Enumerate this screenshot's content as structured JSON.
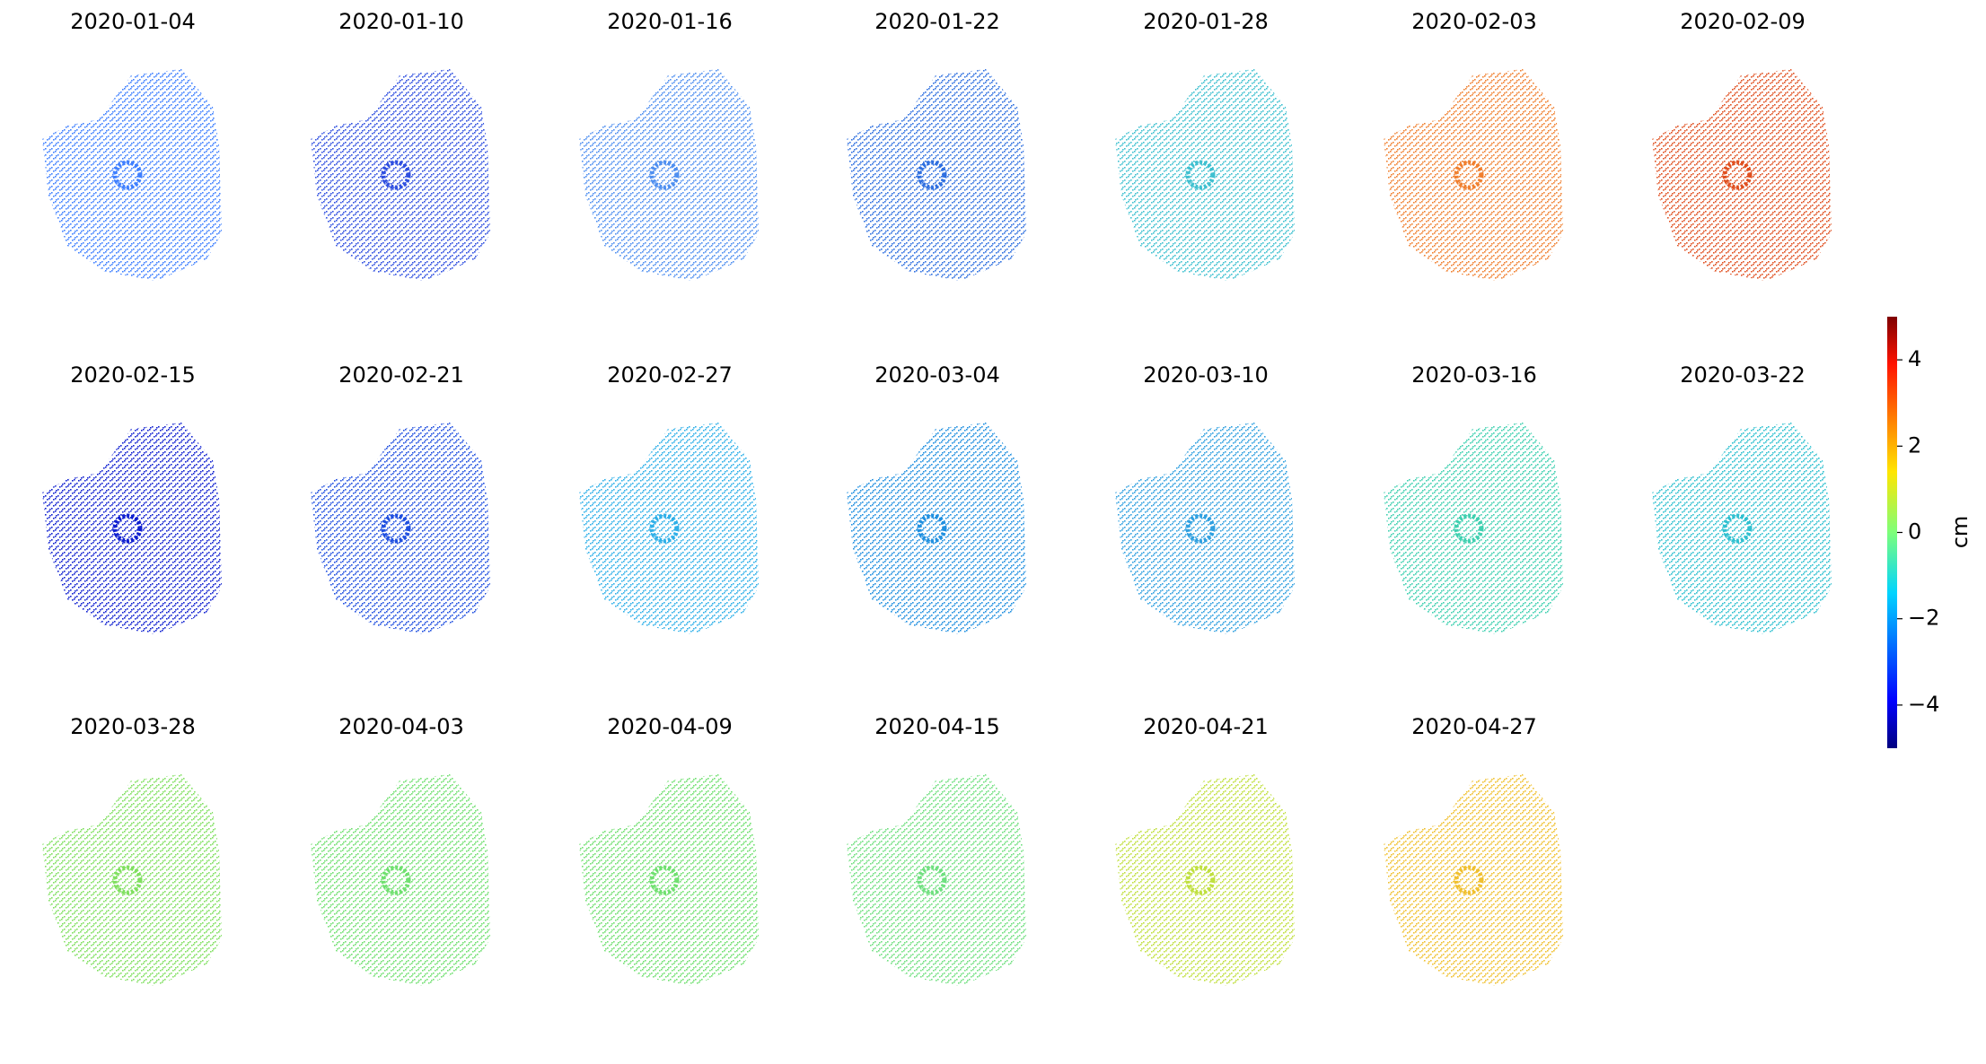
{
  "chart_data": {
    "type": "map-grid",
    "panels": [
      {
        "title": "2020-01-04",
        "color": "#4080ff"
      },
      {
        "title": "2020-01-10",
        "color": "#3050e0"
      },
      {
        "title": "2020-01-16",
        "color": "#5090f0"
      },
      {
        "title": "2020-01-22",
        "color": "#3070e0"
      },
      {
        "title": "2020-01-28",
        "color": "#40c0d0"
      },
      {
        "title": "2020-02-03",
        "color": "#f08030"
      },
      {
        "title": "2020-02-09",
        "color": "#e05020"
      },
      {
        "title": "2020-02-15",
        "color": "#1020d0"
      },
      {
        "title": "2020-02-21",
        "color": "#2050e0"
      },
      {
        "title": "2020-02-27",
        "color": "#30b0e8"
      },
      {
        "title": "2020-03-04",
        "color": "#2090e0"
      },
      {
        "title": "2020-03-10",
        "color": "#30a0e0"
      },
      {
        "title": "2020-03-16",
        "color": "#40d0b0"
      },
      {
        "title": "2020-03-22",
        "color": "#30c0d0"
      },
      {
        "title": "2020-03-28",
        "color": "#80e060"
      },
      {
        "title": "2020-04-03",
        "color": "#70e070"
      },
      {
        "title": "2020-04-09",
        "color": "#70e070"
      },
      {
        "title": "2020-04-15",
        "color": "#70e080"
      },
      {
        "title": "2020-04-21",
        "color": "#c0e040"
      },
      {
        "title": "2020-04-27",
        "color": "#f0c030"
      }
    ],
    "colorbar": {
      "label": "cm",
      "lim": [
        -5,
        5
      ],
      "ticks": [
        {
          "value": -4,
          "label": "−4"
        },
        {
          "value": -2,
          "label": "−2"
        },
        0,
        2,
        4
      ]
    }
  }
}
